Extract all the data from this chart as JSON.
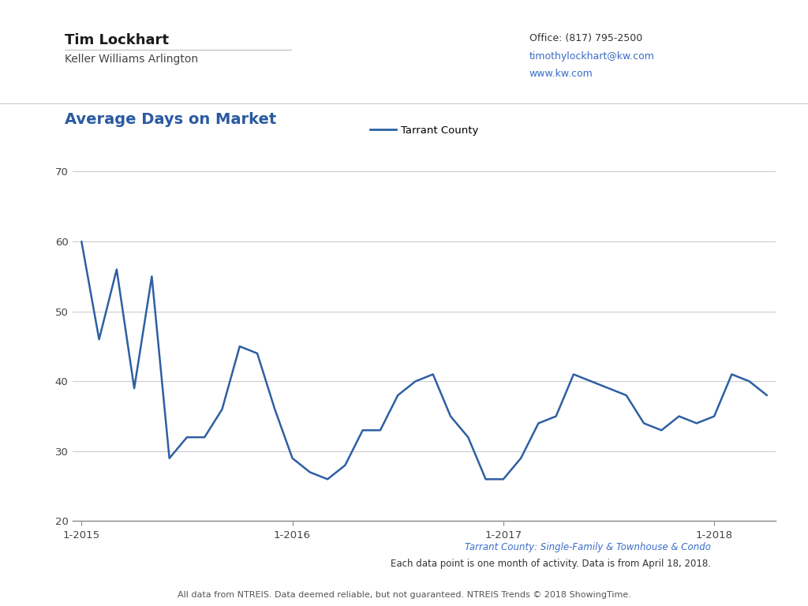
{
  "title": "Average Days on Market",
  "line_color": "#2E5FA3",
  "line_label": "Tarrant County",
  "background_color": "#ffffff",
  "ylim": [
    20,
    72
  ],
  "yticks": [
    20,
    30,
    40,
    50,
    60,
    70
  ],
  "grid_color": "#cccccc",
  "values": [
    60,
    46,
    56,
    39,
    55,
    29,
    32,
    32,
    36,
    45,
    44,
    36,
    29,
    27,
    26,
    28,
    33,
    33,
    38,
    40,
    41,
    35,
    32,
    26,
    26,
    29,
    34,
    35,
    41,
    40,
    39,
    38,
    34,
    33,
    35,
    34,
    35,
    41,
    40,
    38
  ],
  "xtick_positions": [
    0,
    12,
    24,
    36
  ],
  "xtick_labels": [
    "1-2015",
    "1-2016",
    "1-2017",
    "1-2018"
  ],
  "subtitle_color": "#3A6CC8",
  "subtitle_text": "Tarrant County: Single-Family & Townhouse & Condo",
  "footnote1": "Each data point is one month of activity. Data is from April 18, 2018.",
  "footnote2": "All data from NTREIS. Data deemed reliable, but not guaranteed. NTREIS Trends © 2018 ShowingTime.",
  "agent_name": "Tim Lockhart",
  "agent_company": "Keller Williams Arlington",
  "office_line": "Office: (817) 795-2500",
  "email_line": "timothylockhart@kw.com",
  "website_line": "www.kw.com",
  "title_color": "#2a5aa0",
  "agent_name_color": "#1a1a1a",
  "agent_company_color": "#444444",
  "office_color": "#333333"
}
